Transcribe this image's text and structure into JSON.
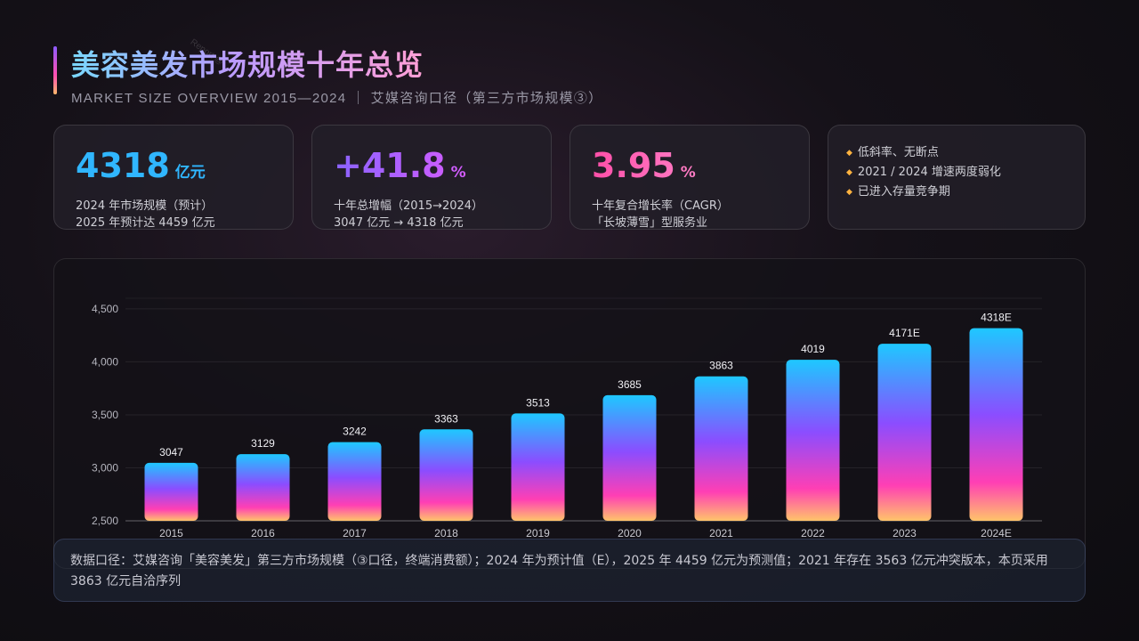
{
  "watermark": "Report @",
  "header": {
    "title": "美容美发市场规模十年总览",
    "subtitle": "MARKET SIZE OVERVIEW 2015—2024 ｜ 艾媒咨询口径（第三方市场规模③）"
  },
  "cards": {
    "size": {
      "value": "4318",
      "unit": "亿元",
      "line1": "2024 年市场规模（预计）",
      "line2": "2025 年预计达 4459 亿元"
    },
    "growth": {
      "value": "+41.8",
      "unit": "%",
      "line1": "十年总增幅（2015→2024）",
      "line2": "3047 亿元 → 4318 亿元"
    },
    "cagr": {
      "value": "3.95",
      "unit": "%",
      "line1": "十年复合增长率（CAGR）",
      "line2": "「长坡薄雪」型服务业"
    },
    "bullets": [
      "低斜率、无断点",
      "2021 / 2024 增速两度弱化",
      "已进入存量竞争期"
    ]
  },
  "chart_data": {
    "type": "bar",
    "categories": [
      "2015",
      "2016",
      "2017",
      "2018",
      "2019",
      "2020",
      "2021",
      "2022",
      "2023",
      "2024E"
    ],
    "values": [
      3047,
      3129,
      3242,
      3363,
      3513,
      3685,
      3863,
      4019,
      4171,
      4318
    ],
    "labels": [
      "3047",
      "3129",
      "3242",
      "3363",
      "3513",
      "3685",
      "3863",
      "4019",
      "4171E",
      "4318E"
    ],
    "ylim": [
      2500,
      4600
    ],
    "yticks": [
      2500,
      3000,
      3500,
      4000,
      4500
    ],
    "ytick_labels": [
      "2,500",
      "3,000",
      "3,500",
      "4,000",
      "4,500"
    ],
    "grid": true,
    "colors": {
      "top": "#1ec8ff",
      "mid": "#8b4dff",
      "low": "#ff3fb4",
      "bottom": "#ffc46a"
    }
  },
  "note": "数据口径：艾媒咨询「美容美发」第三方市场规模（③口径，终端消费额）；2024 年为预计值（E），2025 年 4459 亿元为预测值；2021 年存在 3563 亿元冲突版本，本页采用 3863 亿元自洽序列"
}
